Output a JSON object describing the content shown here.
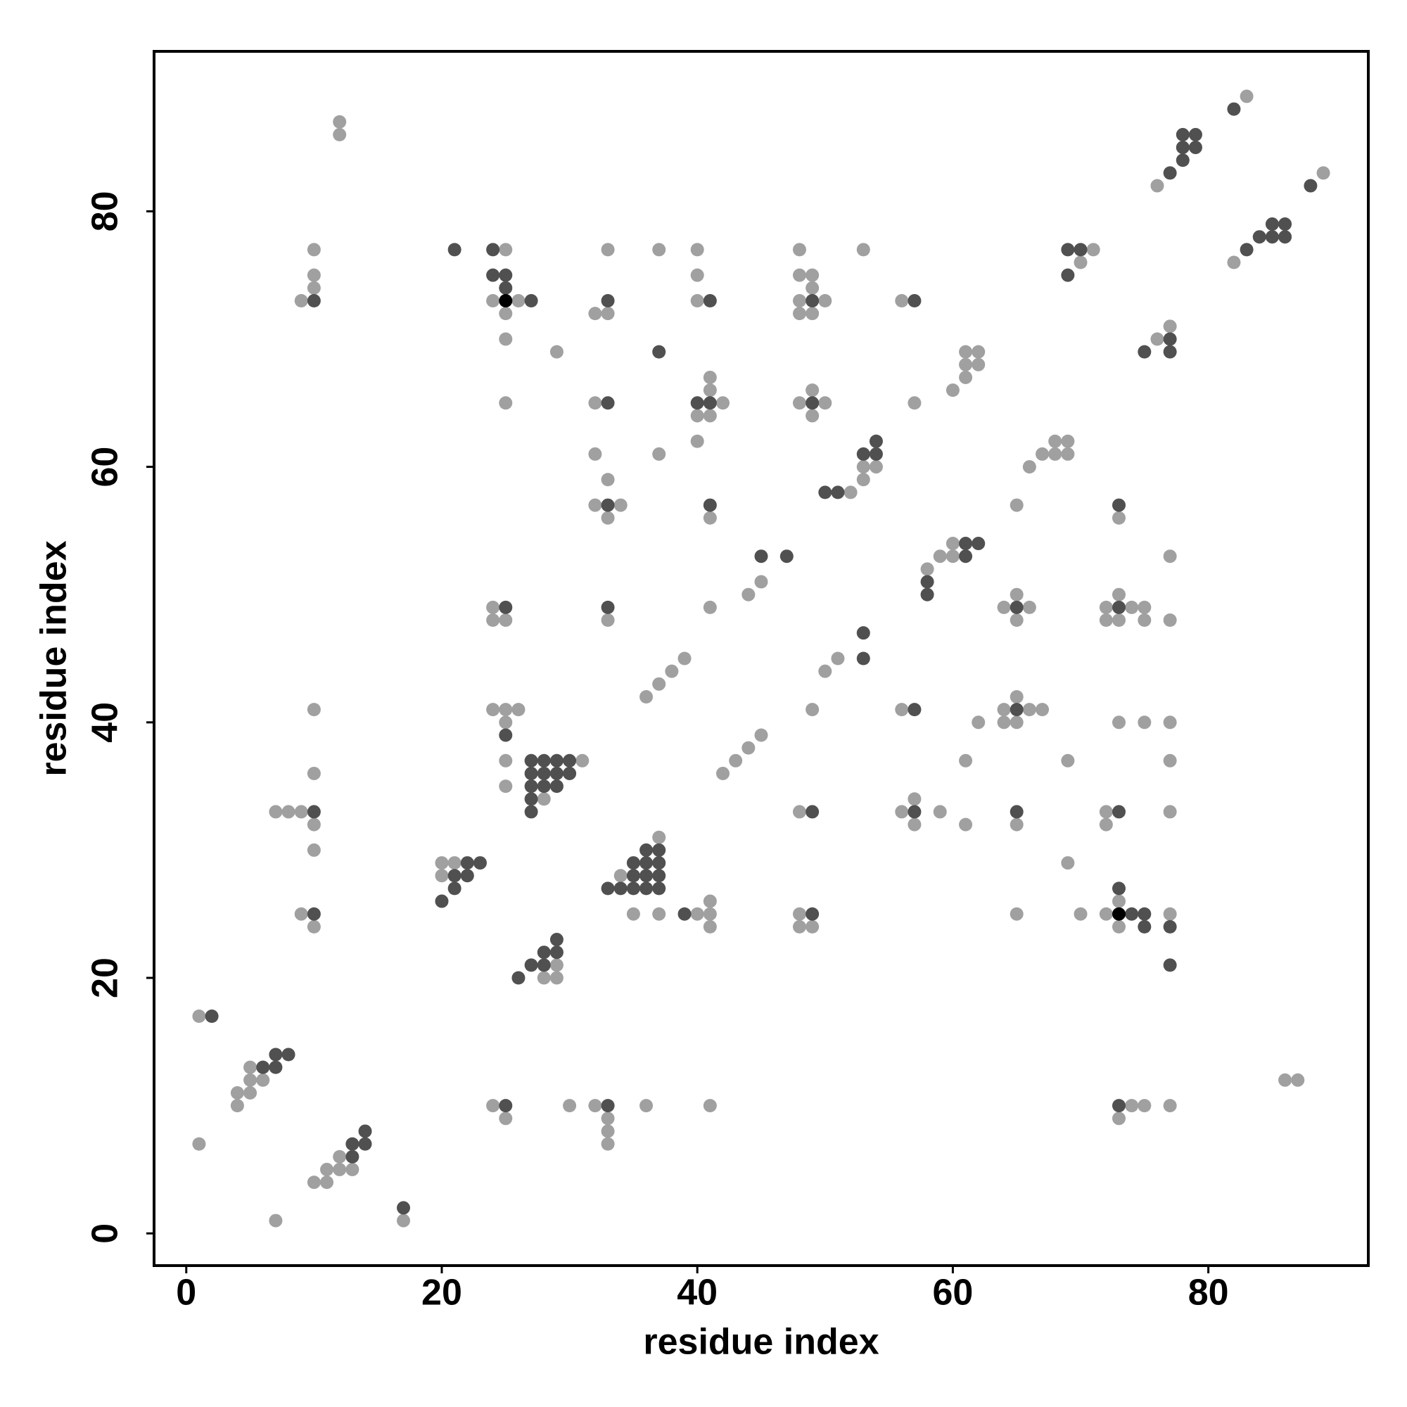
{
  "chart_data": {
    "type": "scatter",
    "xlabel": "residue index",
    "ylabel": "residue index",
    "xlim": [
      -2.52,
      92.52
    ],
    "ylim": [
      -2.52,
      92.52
    ],
    "xticks": [
      0,
      20,
      40,
      60,
      80
    ],
    "yticks": [
      0,
      20,
      40,
      60,
      80
    ],
    "series": [
      {
        "color": "#a0a0a0",
        "x": [
          83,
          12,
          12,
          89,
          76,
          10,
          25,
          33,
          37,
          40,
          48,
          53,
          71,
          70,
          82,
          10,
          40,
          48,
          49,
          10,
          49,
          9,
          24,
          26,
          40,
          48,
          50,
          56,
          25,
          32,
          33,
          48,
          49,
          77,
          25,
          76,
          29,
          61,
          62,
          61,
          62,
          41,
          61,
          41,
          49,
          60,
          25,
          32,
          42,
          48,
          50,
          57,
          40,
          41,
          49,
          40,
          68,
          69,
          32,
          37,
          67,
          68,
          69,
          53,
          54,
          66,
          33,
          53,
          52,
          32,
          34,
          65,
          33,
          41,
          73,
          60,
          59,
          60,
          77,
          58,
          45,
          44,
          65,
          73,
          24,
          41,
          64,
          66,
          72,
          74,
          75,
          24,
          25,
          33,
          65,
          72,
          73,
          75,
          77,
          39,
          51,
          38,
          50,
          37,
          36,
          65,
          10,
          24,
          25,
          26,
          49,
          56,
          64,
          66,
          67,
          25,
          62,
          64,
          65,
          73,
          75,
          77,
          45,
          44,
          25,
          31,
          43,
          61,
          69,
          77,
          10,
          42,
          25,
          28,
          57,
          7,
          8,
          9,
          48,
          56,
          59,
          72,
          77,
          10,
          57,
          61,
          65,
          72,
          37,
          10,
          20,
          21,
          69,
          20,
          34,
          41,
          73,
          9,
          35,
          37,
          40,
          41,
          48,
          65,
          70,
          72,
          77,
          10,
          41,
          48,
          49,
          73,
          29,
          28,
          29,
          1,
          5,
          5,
          6,
          86,
          87,
          4,
          5,
          4,
          24,
          30,
          32,
          36,
          41,
          74,
          75,
          77,
          25,
          33,
          73,
          33,
          1,
          33,
          12,
          11,
          12,
          13,
          10,
          11,
          7,
          17
        ],
        "values": [
          89,
          87,
          86,
          83,
          82,
          77,
          77,
          77,
          77,
          77,
          77,
          77,
          77,
          76,
          76,
          75,
          75,
          75,
          75,
          74,
          74,
          73,
          73,
          73,
          73,
          73,
          73,
          73,
          72,
          72,
          72,
          72,
          72,
          71,
          70,
          70,
          69,
          69,
          69,
          68,
          68,
          67,
          67,
          66,
          66,
          66,
          65,
          65,
          65,
          65,
          65,
          65,
          64,
          64,
          64,
          62,
          62,
          62,
          61,
          61,
          61,
          61,
          61,
          60,
          60,
          60,
          59,
          59,
          58,
          57,
          57,
          57,
          56,
          56,
          56,
          54,
          53,
          53,
          53,
          52,
          51,
          50,
          50,
          50,
          49,
          49,
          49,
          49,
          49,
          49,
          49,
          48,
          48,
          48,
          48,
          48,
          48,
          48,
          48,
          45,
          45,
          44,
          44,
          43,
          42,
          42,
          41,
          41,
          41,
          41,
          41,
          41,
          41,
          41,
          41,
          40,
          40,
          40,
          40,
          40,
          40,
          40,
          39,
          38,
          37,
          37,
          37,
          37,
          37,
          37,
          36,
          36,
          35,
          34,
          34,
          33,
          33,
          33,
          33,
          33,
          33,
          33,
          33,
          32,
          32,
          32,
          32,
          32,
          31,
          30,
          29,
          29,
          29,
          28,
          28,
          26,
          26,
          25,
          25,
          25,
          25,
          25,
          25,
          25,
          25,
          25,
          25,
          24,
          24,
          24,
          24,
          24,
          21,
          20,
          20,
          17,
          13,
          12,
          12,
          12,
          12,
          11,
          11,
          10,
          10,
          10,
          10,
          10,
          10,
          10,
          10,
          10,
          9,
          9,
          9,
          8,
          7,
          7,
          6,
          5,
          5,
          5,
          4,
          4,
          1,
          1
        ]
      },
      {
        "color": "#505050",
        "x": [
          82,
          78,
          79,
          78,
          79,
          78,
          77,
          88,
          85,
          86,
          84,
          85,
          86,
          21,
          24,
          69,
          70,
          83,
          24,
          25,
          69,
          25,
          10,
          27,
          33,
          41,
          49,
          57,
          77,
          37,
          75,
          77,
          33,
          40,
          41,
          49,
          54,
          53,
          54,
          50,
          51,
          33,
          41,
          73,
          61,
          62,
          45,
          47,
          61,
          58,
          58,
          25,
          33,
          65,
          73,
          53,
          53,
          57,
          65,
          25,
          27,
          28,
          29,
          30,
          27,
          28,
          29,
          30,
          27,
          28,
          29,
          27,
          10,
          27,
          49,
          57,
          65,
          73,
          36,
          37,
          22,
          23,
          35,
          36,
          37,
          21,
          22,
          35,
          36,
          37,
          21,
          33,
          34,
          35,
          36,
          37,
          73,
          20,
          10,
          39,
          49,
          74,
          75,
          75,
          77,
          29,
          28,
          29,
          27,
          28,
          77,
          26,
          2,
          7,
          8,
          6,
          7,
          25,
          33,
          73,
          14,
          13,
          14,
          13,
          17
        ],
        "values": [
          88,
          86,
          86,
          85,
          85,
          84,
          83,
          82,
          79,
          79,
          78,
          78,
          78,
          77,
          77,
          77,
          77,
          77,
          75,
          75,
          75,
          74,
          73,
          73,
          73,
          73,
          73,
          73,
          70,
          69,
          69,
          69,
          65,
          65,
          65,
          65,
          62,
          61,
          61,
          58,
          58,
          57,
          57,
          57,
          54,
          54,
          53,
          53,
          53,
          51,
          50,
          49,
          49,
          49,
          49,
          47,
          45,
          41,
          41,
          39,
          37,
          37,
          37,
          37,
          36,
          36,
          36,
          36,
          35,
          35,
          35,
          34,
          33,
          33,
          33,
          33,
          33,
          33,
          30,
          30,
          29,
          29,
          29,
          29,
          29,
          28,
          28,
          28,
          28,
          28,
          27,
          27,
          27,
          27,
          27,
          27,
          27,
          26,
          25,
          25,
          25,
          25,
          25,
          24,
          24,
          23,
          22,
          22,
          21,
          21,
          21,
          20,
          17,
          14,
          14,
          13,
          13,
          10,
          10,
          10,
          8,
          7,
          7,
          6,
          2
        ]
      },
      {
        "color": "#000000",
        "x": [
          25,
          73
        ],
        "values": [
          73,
          25
        ]
      }
    ]
  }
}
